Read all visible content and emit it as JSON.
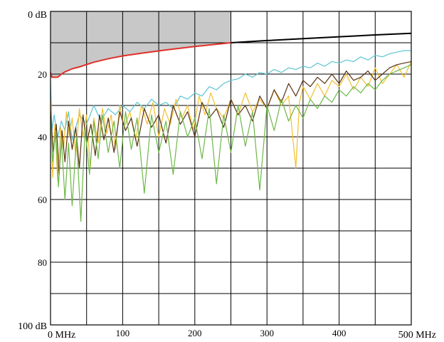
{
  "chart_data": {
    "type": "line",
    "title": "",
    "xlabel": "",
    "ylabel": "",
    "x_unit": "MHz",
    "y_unit": "dB",
    "xlim": [
      0,
      500
    ],
    "ylim": [
      0,
      100
    ],
    "y_inverted": true,
    "grid": true,
    "x_ticks": [
      {
        "value": 0,
        "label": "0 MHz"
      },
      {
        "value": 100,
        "label": "100"
      },
      {
        "value": 200,
        "label": "200"
      },
      {
        "value": 300,
        "label": "300"
      },
      {
        "value": 400,
        "label": "400"
      },
      {
        "value": 500,
        "label": "500 MHz"
      }
    ],
    "y_ticks": [
      {
        "value": 0,
        "label": "0 dB"
      },
      {
        "value": 20,
        "label": "20"
      },
      {
        "value": 40,
        "label": "40"
      },
      {
        "value": 60,
        "label": "60"
      },
      {
        "value": 80,
        "label": "80"
      },
      {
        "value": 100,
        "label": "100 dB"
      }
    ],
    "shaded_region": {
      "color": "#c8c8c8",
      "x_range": [
        0,
        250
      ],
      "upper_y": 0,
      "lower_boundary": "limit_line"
    },
    "limit_line": {
      "color_below_250": "#e0302a",
      "color_above_250": "#000000",
      "x": [
        0,
        2,
        5,
        10,
        15,
        20,
        30,
        40,
        60,
        80,
        100,
        130,
        160,
        200,
        250,
        300,
        350,
        400,
        450,
        500
      ],
      "y": [
        19.5,
        21,
        21,
        21,
        20,
        19.3,
        18.3,
        17.7,
        16.2,
        15.1,
        14.2,
        13.2,
        12.3,
        11.2,
        10.0,
        9.3,
        8.7,
        8.1,
        7.5,
        7.0
      ]
    },
    "series": [
      {
        "color": "#5cc4d2",
        "x": [
          0,
          2,
          5,
          10,
          15,
          20,
          25,
          30,
          40,
          50,
          60,
          70,
          80,
          90,
          100,
          110,
          120,
          130,
          140,
          150,
          160,
          170,
          180,
          190,
          200,
          210,
          220,
          230,
          240,
          250,
          260,
          270,
          280,
          290,
          300,
          310,
          320,
          330,
          340,
          350,
          360,
          370,
          380,
          390,
          400,
          410,
          420,
          430,
          440,
          450,
          460,
          470,
          480,
          490,
          500
        ],
        "y": [
          22,
          38,
          33,
          40,
          35,
          38,
          32,
          41,
          33,
          36,
          30,
          35,
          31,
          33,
          30,
          32,
          29,
          31,
          28,
          30,
          29,
          31,
          27,
          28,
          26,
          27,
          24,
          25,
          23,
          22,
          21.5,
          20,
          21,
          19.5,
          20,
          18.5,
          19.5,
          18,
          18.5,
          17.5,
          18,
          16.5,
          17.5,
          16,
          16.5,
          15.5,
          16,
          14.5,
          15.5,
          14,
          14.5,
          13.5,
          13,
          12.5,
          12.5
        ]
      },
      {
        "color": "#f2bf2e",
        "x": [
          0,
          3,
          6,
          10,
          14,
          18,
          22,
          26,
          30,
          35,
          40,
          45,
          50,
          55,
          60,
          66,
          72,
          78,
          84,
          90,
          96,
          102,
          110,
          118,
          126,
          134,
          142,
          150,
          158,
          166,
          174,
          182,
          190,
          198,
          206,
          214,
          222,
          230,
          240,
          250,
          260,
          270,
          280,
          290,
          300,
          310,
          320,
          330,
          340,
          345,
          350,
          360,
          370,
          380,
          390,
          400,
          410,
          420,
          430,
          440,
          450,
          460,
          470,
          480,
          490,
          500
        ],
        "y": [
          28,
          53,
          36,
          54,
          37,
          44,
          32,
          40,
          34,
          46,
          31,
          40,
          33,
          50,
          34,
          42,
          31,
          39,
          33,
          44,
          30,
          37,
          32,
          41,
          30,
          36,
          29,
          40,
          31,
          36,
          28,
          34,
          30,
          38,
          27,
          33,
          26,
          31,
          34,
          28,
          33,
          26,
          32,
          28,
          31,
          25,
          30,
          27,
          50,
          29,
          24,
          28,
          23,
          27,
          22,
          24,
          20,
          25,
          21,
          24,
          18,
          23,
          20,
          17,
          21,
          16
        ]
      },
      {
        "color": "#5a3314",
        "x": [
          0,
          4,
          8,
          12,
          16,
          20,
          25,
          30,
          35,
          40,
          45,
          50,
          56,
          62,
          68,
          74,
          80,
          88,
          96,
          104,
          112,
          120,
          130,
          140,
          150,
          160,
          170,
          180,
          190,
          200,
          210,
          220,
          230,
          240,
          250,
          260,
          270,
          280,
          290,
          300,
          310,
          320,
          330,
          340,
          350,
          360,
          370,
          380,
          390,
          400,
          410,
          420,
          430,
          440,
          450,
          460,
          470,
          480,
          490,
          500
        ],
        "y": [
          32,
          45,
          36,
          52,
          38,
          48,
          35,
          44,
          37,
          50,
          33,
          42,
          36,
          46,
          33,
          41,
          34,
          45,
          32,
          38,
          34,
          43,
          31,
          37,
          33,
          42,
          30,
          36,
          32,
          40,
          29,
          34,
          31,
          37,
          28,
          33,
          30,
          35,
          27,
          31,
          25,
          29,
          23,
          27,
          22,
          24,
          21,
          23,
          20,
          23,
          19,
          22,
          21,
          19,
          22,
          20,
          18,
          17,
          16.5,
          16
        ]
      },
      {
        "color": "#6cb847",
        "x": [
          0,
          3,
          7,
          11,
          15,
          20,
          25,
          30,
          36,
          42,
          48,
          54,
          60,
          66,
          72,
          80,
          88,
          96,
          104,
          112,
          120,
          130,
          140,
          150,
          160,
          170,
          180,
          190,
          200,
          210,
          220,
          230,
          240,
          250,
          260,
          270,
          280,
          290,
          300,
          310,
          320,
          330,
          340,
          350,
          360,
          370,
          380,
          390,
          400,
          410,
          420,
          430,
          440,
          450,
          460,
          470,
          480,
          490,
          500
        ],
        "y": [
          34,
          48,
          38,
          56,
          40,
          60,
          42,
          62,
          40,
          67,
          37,
          52,
          35,
          47,
          33,
          45,
          35,
          50,
          32,
          44,
          34,
          58,
          33,
          45,
          35,
          52,
          32,
          40,
          34,
          47,
          31,
          55,
          33,
          45,
          30,
          43,
          32,
          57,
          30,
          38,
          28,
          35,
          30,
          34,
          28,
          31,
          27,
          29,
          25,
          27,
          24,
          26,
          23,
          25,
          22,
          20,
          19,
          18,
          17
        ]
      }
    ]
  }
}
